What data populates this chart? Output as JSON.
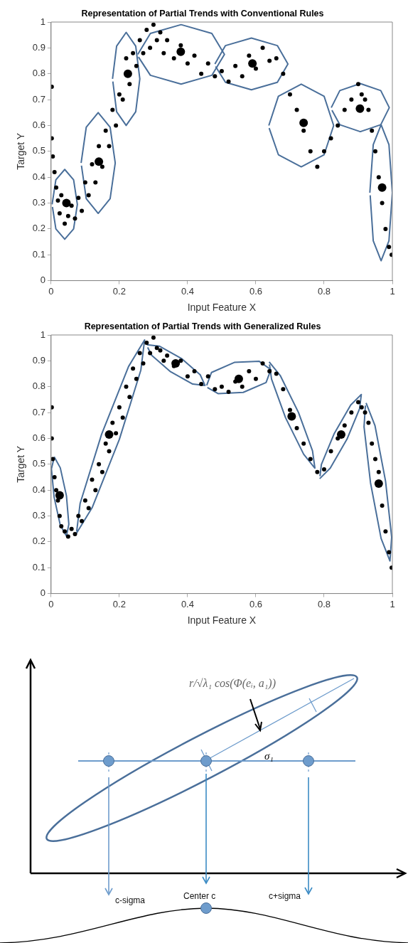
{
  "chart_data": [
    {
      "type": "scatter",
      "title": "Representation of Partial Trends with Conventional Rules",
      "xlabel": "Input Feature X",
      "ylabel": "Target Y",
      "xlim": [
        0,
        1
      ],
      "ylim": [
        0,
        1
      ],
      "xticks": [
        0,
        0.2,
        0.4,
        0.6,
        0.8,
        1
      ],
      "yticks": [
        0,
        0.1,
        0.2,
        0.3,
        0.4,
        0.5,
        0.6,
        0.7,
        0.8,
        0.9,
        1
      ],
      "series": [
        {
          "type": "scatter",
          "color": "#000000",
          "marker": "circle",
          "x": [
            0.002,
            0.002,
            0.005,
            0.01,
            0.015,
            0.02,
            0.025,
            0.03,
            0.04,
            0.05,
            0.06,
            0.07,
            0.08,
            0.09,
            0.1,
            0.11,
            0.12,
            0.13,
            0.14,
            0.15,
            0.16,
            0.17,
            0.18,
            0.19,
            0.2,
            0.21,
            0.22,
            0.23,
            0.24,
            0.25,
            0.26,
            0.27,
            0.28,
            0.29,
            0.3,
            0.31,
            0.32,
            0.33,
            0.34,
            0.36,
            0.38,
            0.4,
            0.42,
            0.44,
            0.46,
            0.48,
            0.5,
            0.52,
            0.54,
            0.56,
            0.58,
            0.6,
            0.62,
            0.64,
            0.66,
            0.68,
            0.7,
            0.72,
            0.74,
            0.76,
            0.78,
            0.8,
            0.82,
            0.84,
            0.86,
            0.88,
            0.9,
            0.91,
            0.92,
            0.93,
            0.94,
            0.95,
            0.96,
            0.97,
            0.98,
            0.99,
            0.998
          ],
          "values": [
            0.75,
            0.55,
            0.48,
            0.42,
            0.36,
            0.31,
            0.26,
            0.33,
            0.22,
            0.25,
            0.29,
            0.24,
            0.32,
            0.27,
            0.38,
            0.33,
            0.45,
            0.38,
            0.52,
            0.44,
            0.58,
            0.52,
            0.66,
            0.6,
            0.72,
            0.7,
            0.86,
            0.76,
            0.88,
            0.83,
            0.93,
            0.88,
            0.97,
            0.9,
            0.99,
            0.93,
            0.96,
            0.88,
            0.93,
            0.86,
            0.91,
            0.84,
            0.87,
            0.8,
            0.84,
            0.79,
            0.81,
            0.77,
            0.83,
            0.79,
            0.87,
            0.82,
            0.9,
            0.85,
            0.86,
            0.8,
            0.72,
            0.66,
            0.58,
            0.5,
            0.44,
            0.5,
            0.55,
            0.6,
            0.66,
            0.7,
            0.76,
            0.72,
            0.7,
            0.66,
            0.58,
            0.5,
            0.4,
            0.3,
            0.2,
            0.13,
            0.1
          ]
        },
        {
          "type": "scatter",
          "color": "#000000",
          "marker": "circle",
          "x": [
            0.045,
            0.14,
            0.225,
            0.38,
            0.59,
            0.74,
            0.905,
            0.97
          ],
          "values": [
            0.3,
            0.46,
            0.8,
            0.885,
            0.84,
            0.61,
            0.665,
            0.36
          ]
        },
        {
          "type": "line",
          "color": "#4a6f9a",
          "marker": "none",
          "x": [
            0.003,
            0.014,
            0.04,
            0.066,
            0.077,
            0.066,
            0.04,
            0.014,
            0.004
          ],
          "values": [
            0.295,
            0.39,
            0.43,
            0.39,
            0.295,
            0.2,
            0.16,
            0.2,
            0.285
          ]
        },
        {
          "type": "line",
          "color": "#4a6f9a",
          "marker": "none",
          "x": [
            0.088,
            0.103,
            0.138,
            0.173,
            0.188,
            0.173,
            0.138,
            0.103,
            0.089
          ],
          "values": [
            0.455,
            0.593,
            0.65,
            0.593,
            0.455,
            0.317,
            0.26,
            0.317,
            0.445
          ]
        },
        {
          "type": "line",
          "color": "#4a6f9a",
          "marker": "none",
          "x": [
            0.18,
            0.192,
            0.22,
            0.248,
            0.26,
            0.248,
            0.22,
            0.192,
            0.181
          ],
          "values": [
            0.78,
            0.907,
            0.96,
            0.907,
            0.78,
            0.653,
            0.6,
            0.653,
            0.77
          ]
        },
        {
          "type": "line",
          "color": "#4a6f9a",
          "marker": "none",
          "x": [
            0.254,
            0.291,
            0.381,
            0.471,
            0.508,
            0.471,
            0.381,
            0.291,
            0.256
          ],
          "values": [
            0.875,
            0.956,
            0.99,
            0.956,
            0.875,
            0.794,
            0.76,
            0.794,
            0.865
          ]
        },
        {
          "type": "line",
          "color": "#4a6f9a",
          "marker": "none",
          "x": [
            0.48,
            0.511,
            0.587,
            0.663,
            0.694,
            0.663,
            0.587,
            0.511,
            0.482
          ],
          "values": [
            0.838,
            0.909,
            0.938,
            0.909,
            0.838,
            0.767,
            0.738,
            0.767,
            0.828
          ]
        },
        {
          "type": "line",
          "color": "#4a6f9a",
          "marker": "none",
          "x": [
            0.638,
            0.666,
            0.733,
            0.8,
            0.828,
            0.8,
            0.733,
            0.666,
            0.639
          ],
          "values": [
            0.6,
            0.713,
            0.76,
            0.713,
            0.6,
            0.487,
            0.44,
            0.487,
            0.59
          ]
        },
        {
          "type": "line",
          "color": "#4a6f9a",
          "marker": "none",
          "x": [
            0.821,
            0.846,
            0.906,
            0.966,
            0.991,
            0.966,
            0.906,
            0.846,
            0.823
          ],
          "values": [
            0.669,
            0.735,
            0.762,
            0.735,
            0.669,
            0.603,
            0.576,
            0.603,
            0.659
          ]
        },
        {
          "type": "line",
          "color": "#4a6f9a",
          "marker": "none",
          "x": [
            0.934,
            0.944,
            0.967,
            0.99,
            1,
            0.99,
            0.967,
            0.944,
            0.935
          ],
          "values": [
            0.34,
            0.526,
            0.603,
            0.526,
            0.34,
            0.154,
            0.077,
            0.154,
            0.33
          ]
        }
      ]
    },
    {
      "type": "scatter",
      "title": "Representation of Partial Trends with Generalized Rules",
      "xlabel": "Input Feature X",
      "ylabel": "Target Y",
      "xlim": [
        0,
        1
      ],
      "ylim": [
        0,
        1
      ],
      "xticks": [
        0,
        0.2,
        0.4,
        0.6,
        0.8,
        1
      ],
      "yticks": [
        0,
        0.1,
        0.2,
        0.3,
        0.4,
        0.5,
        0.6,
        0.7,
        0.8,
        0.9,
        1
      ],
      "series": [
        {
          "type": "scatter",
          "color": "#000000",
          "marker": "circle",
          "x": [
            0.002,
            0.002,
            0.005,
            0.01,
            0.015,
            0.02,
            0.025,
            0.03,
            0.04,
            0.05,
            0.06,
            0.07,
            0.08,
            0.09,
            0.1,
            0.11,
            0.12,
            0.13,
            0.14,
            0.15,
            0.16,
            0.17,
            0.18,
            0.19,
            0.2,
            0.21,
            0.22,
            0.23,
            0.24,
            0.25,
            0.26,
            0.27,
            0.28,
            0.29,
            0.3,
            0.31,
            0.32,
            0.33,
            0.34,
            0.36,
            0.38,
            0.4,
            0.42,
            0.44,
            0.46,
            0.48,
            0.5,
            0.52,
            0.54,
            0.56,
            0.58,
            0.6,
            0.62,
            0.64,
            0.66,
            0.68,
            0.7,
            0.72,
            0.74,
            0.76,
            0.78,
            0.8,
            0.82,
            0.84,
            0.86,
            0.88,
            0.9,
            0.91,
            0.92,
            0.93,
            0.94,
            0.95,
            0.96,
            0.97,
            0.98,
            0.99,
            0.998
          ],
          "values": [
            0.72,
            0.6,
            0.52,
            0.45,
            0.4,
            0.36,
            0.3,
            0.26,
            0.24,
            0.22,
            0.25,
            0.23,
            0.3,
            0.28,
            0.36,
            0.33,
            0.44,
            0.4,
            0.5,
            0.47,
            0.58,
            0.55,
            0.66,
            0.62,
            0.72,
            0.68,
            0.8,
            0.76,
            0.87,
            0.83,
            0.93,
            0.89,
            0.97,
            0.93,
            0.99,
            0.95,
            0.94,
            0.9,
            0.92,
            0.88,
            0.9,
            0.84,
            0.86,
            0.81,
            0.84,
            0.79,
            0.8,
            0.78,
            0.82,
            0.8,
            0.86,
            0.83,
            0.89,
            0.86,
            0.85,
            0.79,
            0.71,
            0.64,
            0.58,
            0.52,
            0.47,
            0.48,
            0.55,
            0.6,
            0.65,
            0.7,
            0.74,
            0.72,
            0.7,
            0.66,
            0.58,
            0.52,
            0.47,
            0.34,
            0.24,
            0.16,
            0.1
          ]
        },
        {
          "type": "scatter",
          "color": "#000000",
          "marker": "circle",
          "x": [
            0.025,
            0.17,
            0.365,
            0.55,
            0.705,
            0.85,
            0.96
          ],
          "values": [
            0.38,
            0.615,
            0.89,
            0.83,
            0.685,
            0.615,
            0.425
          ]
        },
        {
          "type": "line",
          "color": "#4a6f9a",
          "marker": "none",
          "x": [
            0.009,
            0.027,
            0.045,
            0.052,
            0.045,
            0.027,
            0.009,
            0.001,
            0.008
          ],
          "values": [
            0.529,
            0.486,
            0.378,
            0.268,
            0.222,
            0.264,
            0.372,
            0.482,
            0.52
          ]
        },
        {
          "type": "line",
          "color": "#4a6f9a",
          "marker": "none",
          "x": [
            0.073,
            0.121,
            0.2,
            0.263,
            0.274,
            0.227,
            0.148,
            0.085,
            0.075
          ],
          "values": [
            0.23,
            0.334,
            0.596,
            0.864,
            0.981,
            0.878,
            0.616,
            0.348,
            0.24
          ]
        },
        {
          "type": "line",
          "color": "#4a6f9a",
          "marker": "none",
          "x": [
            0.281,
            0.317,
            0.382,
            0.437,
            0.451,
            0.415,
            0.35,
            0.295,
            0.283
          ],
          "values": [
            0.962,
            0.957,
            0.909,
            0.846,
            0.805,
            0.81,
            0.858,
            0.921,
            0.952
          ]
        },
        {
          "type": "line",
          "color": "#4a6f9a",
          "marker": "none",
          "x": [
            0.456,
            0.47,
            0.537,
            0.61,
            0.644,
            0.63,
            0.563,
            0.49,
            0.458
          ],
          "values": [
            0.805,
            0.855,
            0.894,
            0.898,
            0.866,
            0.816,
            0.778,
            0.773,
            0.797
          ]
        },
        {
          "type": "line",
          "color": "#4a6f9a",
          "marker": "none",
          "x": [
            0.639,
            0.672,
            0.725,
            0.766,
            0.773,
            0.74,
            0.687,
            0.646,
            0.64
          ],
          "values": [
            0.896,
            0.842,
            0.7,
            0.552,
            0.485,
            0.539,
            0.68,
            0.829,
            0.886
          ]
        },
        {
          "type": "line",
          "color": "#4a6f9a",
          "marker": "none",
          "x": [
            0.787,
            0.818,
            0.867,
            0.904,
            0.909,
            0.878,
            0.829,
            0.792,
            0.788
          ],
          "values": [
            0.444,
            0.485,
            0.597,
            0.715,
            0.77,
            0.729,
            0.617,
            0.499,
            0.454
          ]
        },
        {
          "type": "line",
          "color": "#4a6f9a",
          "marker": "none",
          "x": [
            0.923,
            0.949,
            0.98,
            0.998,
            0.993,
            0.967,
            0.936,
            0.917,
            0.921
          ],
          "values": [
            0.737,
            0.65,
            0.435,
            0.218,
            0.126,
            0.213,
            0.428,
            0.645,
            0.727
          ]
        }
      ]
    },
    {
      "type": "other",
      "annotations": [
        "r/√λ₁ cos(Φ(eᵢ, a₁))",
        "σ₁",
        "c-sigma",
        "Center c",
        "c+sigma"
      ]
    }
  ]
}
